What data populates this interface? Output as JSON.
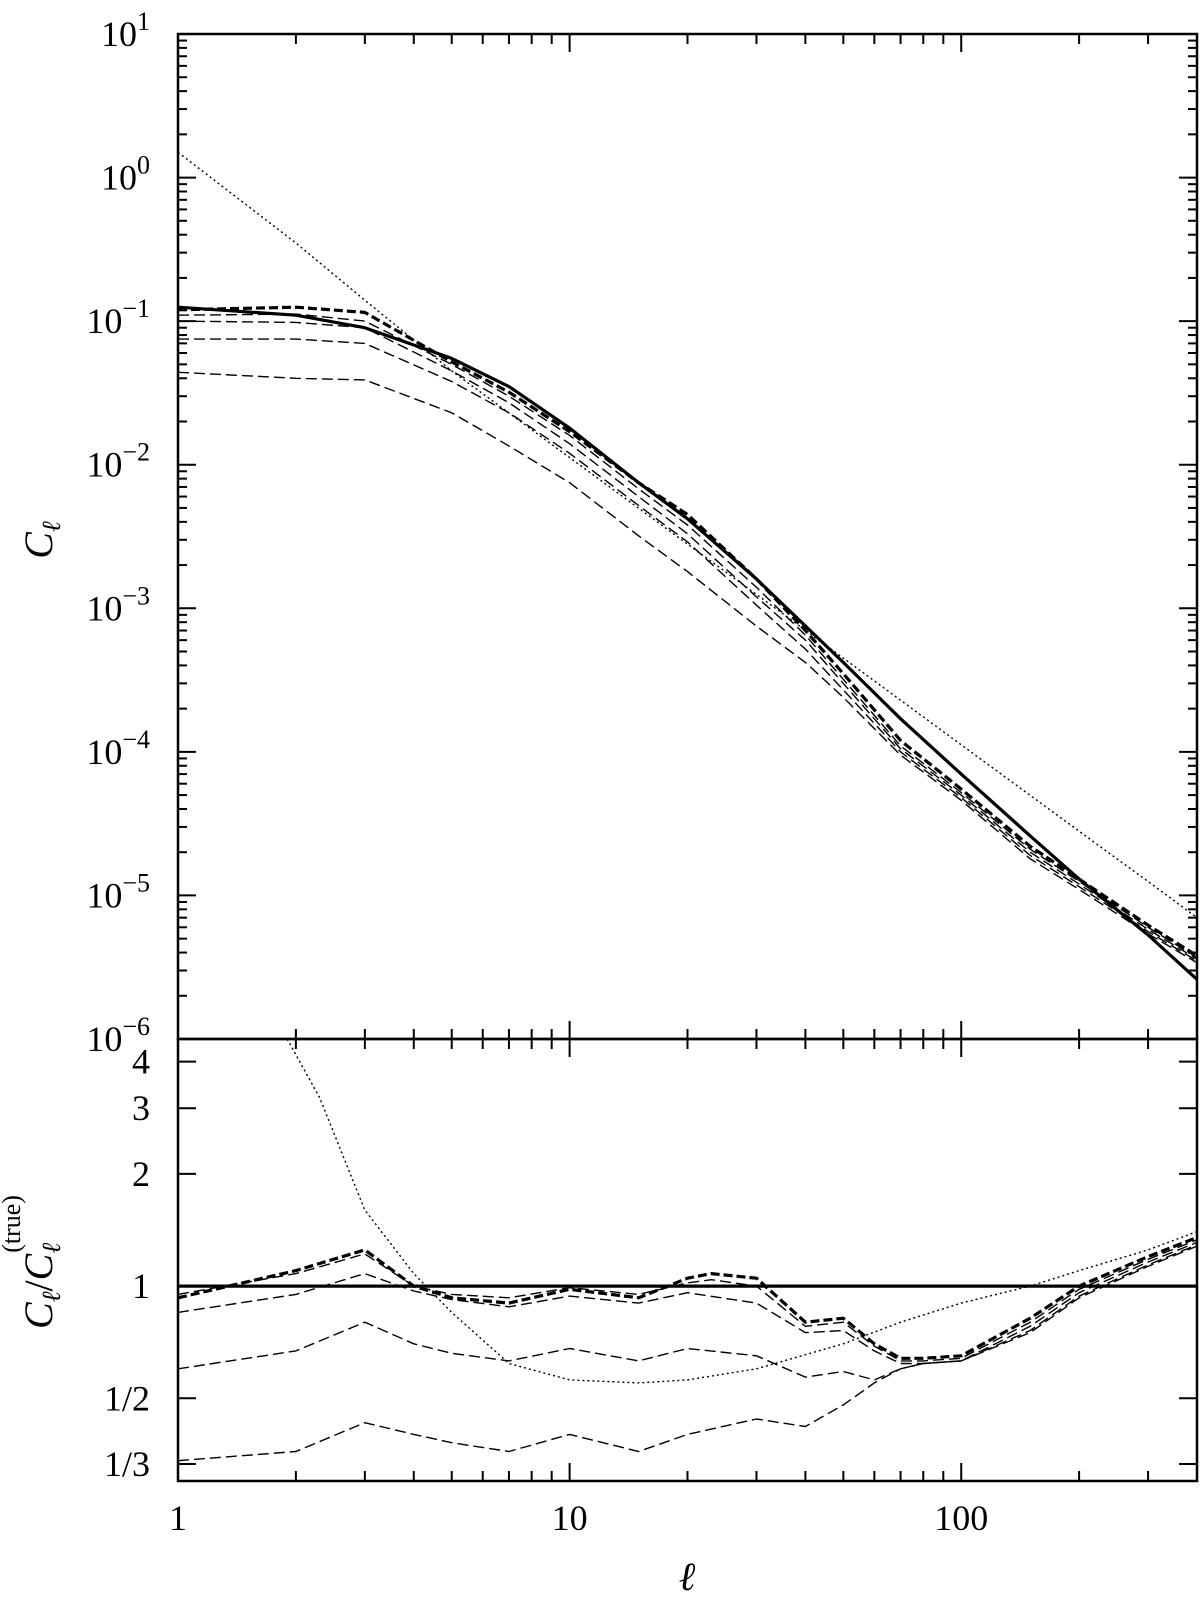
{
  "chart_data": [
    {
      "type": "line",
      "panel": "top",
      "xlabel": "ℓ",
      "ylabel": "C",
      "ylabel_sub": "ℓ",
      "xscale": "log",
      "yscale": "log",
      "xlim": [
        1,
        400
      ],
      "ylim": [
        1e-06,
        10
      ],
      "x_tick_labels": [],
      "y_ticks": [
        {
          "value": 10,
          "base": "10",
          "exp": "1"
        },
        {
          "value": 1,
          "base": "10",
          "exp": "0"
        },
        {
          "value": 0.1,
          "base": "10",
          "exp": "−1"
        },
        {
          "value": 0.01,
          "base": "10",
          "exp": "−2"
        },
        {
          "value": 0.001,
          "base": "10",
          "exp": "−3"
        },
        {
          "value": 0.0001,
          "base": "10",
          "exp": "−4"
        },
        {
          "value": 1e-05,
          "base": "10",
          "exp": "−5"
        },
        {
          "value": 1e-06,
          "base": "10",
          "exp": "−6"
        }
      ],
      "series": [
        {
          "style": "solid",
          "x": [
            1,
            2,
            3,
            5,
            7,
            10,
            15,
            20,
            30,
            50,
            70,
            100,
            150,
            200,
            300,
            400
          ],
          "y": [
            0.125,
            0.11,
            0.09,
            0.055,
            0.035,
            0.018,
            0.0075,
            0.0042,
            0.0016,
            0.00042,
            0.00017,
            7e-05,
            2.6e-05,
            1.3e-05,
            5.3e-06,
            2.6e-06
          ]
        },
        {
          "style": "dotted",
          "x": [
            1,
            2,
            3,
            5,
            10,
            20,
            30,
            50,
            100,
            200,
            300,
            400
          ],
          "y": [
            1.5,
            0.35,
            0.14,
            0.045,
            0.0112,
            0.0028,
            0.00125,
            0.00045,
            0.000112,
            2.8e-05,
            1.25e-05,
            7e-06
          ]
        },
        {
          "style": "dashed-thick",
          "x": [
            1,
            2,
            3,
            5,
            7,
            10,
            15,
            20,
            30,
            40,
            50,
            70,
            100,
            150,
            200,
            300,
            400
          ],
          "y": [
            0.12,
            0.125,
            0.115,
            0.052,
            0.032,
            0.017,
            0.0075,
            0.0045,
            0.0016,
            0.0007,
            0.00035,
            0.00012,
            5.5e-05,
            2.2e-05,
            1.3e-05,
            6.2e-06,
            3.8e-06
          ]
        },
        {
          "style": "dashed",
          "x": [
            1,
            2,
            3,
            5,
            7,
            10,
            15,
            20,
            30,
            40,
            50,
            70,
            100,
            150,
            200,
            300,
            400
          ],
          "y": [
            0.11,
            0.112,
            0.1,
            0.05,
            0.03,
            0.016,
            0.0068,
            0.0038,
            0.0014,
            0.00065,
            0.00032,
            0.00011,
            5.2e-05,
            2.1e-05,
            1.25e-05,
            6e-06,
            3.7e-06
          ]
        },
        {
          "style": "dashed",
          "x": [
            1,
            2,
            3,
            5,
            7,
            10,
            15,
            20,
            30,
            40,
            50,
            70,
            100,
            150,
            200,
            300,
            400
          ],
          "y": [
            0.1,
            0.098,
            0.09,
            0.045,
            0.027,
            0.014,
            0.006,
            0.0033,
            0.0012,
            0.0006,
            0.0003,
            0.000105,
            5e-05,
            2e-05,
            1.2e-05,
            5.8e-06,
            3.6e-06
          ]
        },
        {
          "style": "dashed",
          "x": [
            1,
            2,
            3,
            5,
            7,
            10,
            15,
            20,
            30,
            40,
            50,
            70,
            100,
            150,
            200,
            300,
            400
          ],
          "y": [
            0.075,
            0.075,
            0.07,
            0.038,
            0.023,
            0.012,
            0.0052,
            0.0029,
            0.00105,
            0.00052,
            0.00027,
            0.0001,
            4.8e-05,
            1.9e-05,
            1.15e-05,
            5.6e-06,
            3.5e-06
          ]
        },
        {
          "style": "dashed",
          "x": [
            1,
            2,
            3,
            5,
            7,
            10,
            15,
            20,
            30,
            40,
            50,
            70,
            100,
            150,
            200,
            300,
            400
          ],
          "y": [
            0.044,
            0.04,
            0.039,
            0.023,
            0.0135,
            0.0075,
            0.0032,
            0.0018,
            0.00075,
            0.00042,
            0.00024,
            9.5e-05,
            4.6e-05,
            1.8e-05,
            1.1e-05,
            5.4e-06,
            3.4e-06
          ]
        }
      ]
    },
    {
      "type": "line",
      "panel": "bottom",
      "xlabel": "ℓ",
      "xscale": "log",
      "yscale": "log",
      "xlim": [
        1,
        400
      ],
      "ylim": [
        0.3,
        4.6
      ],
      "x_tick_labels": [
        {
          "value": 1,
          "label": "1"
        },
        {
          "value": 10,
          "label": "10"
        },
        {
          "value": 100,
          "label": "100"
        }
      ],
      "y_ticks": [
        {
          "value": 4,
          "label": "4"
        },
        {
          "value": 3,
          "label": "3"
        },
        {
          "value": 2,
          "label": "2"
        },
        {
          "value": 1,
          "label": "1"
        },
        {
          "value": 0.5,
          "label": "1/2"
        },
        {
          "value": 0.3333,
          "label": "1/3"
        }
      ],
      "series": [
        {
          "style": "solid",
          "x": [
            1,
            400
          ],
          "y": [
            1,
            1
          ]
        },
        {
          "style": "dotted",
          "x": [
            1.9,
            2.3,
            3,
            4,
            5,
            7,
            10,
            15,
            20,
            30,
            50,
            70,
            100,
            150,
            200,
            300,
            400
          ],
          "y": [
            4.6,
            3.2,
            1.6,
            1.08,
            0.85,
            0.62,
            0.56,
            0.55,
            0.56,
            0.6,
            0.7,
            0.8,
            0.9,
            1.0,
            1.1,
            1.25,
            1.4
          ]
        },
        {
          "style": "dashed-thick",
          "x": [
            1,
            2,
            3,
            4,
            5,
            7,
            10,
            15,
            20,
            23,
            30,
            40,
            50,
            60,
            70,
            80,
            100,
            150,
            200,
            300,
            400
          ],
          "y": [
            0.93,
            1.1,
            1.25,
            1.0,
            0.93,
            0.9,
            0.98,
            0.93,
            1.05,
            1.08,
            1.05,
            0.8,
            0.82,
            0.7,
            0.64,
            0.64,
            0.65,
            0.82,
            1.0,
            1.2,
            1.35
          ]
        },
        {
          "style": "dashed",
          "x": [
            1,
            2,
            3,
            4,
            5,
            7,
            10,
            15,
            20,
            23,
            30,
            40,
            50,
            60,
            70,
            80,
            100,
            150,
            200,
            300,
            400
          ],
          "y": [
            0.95,
            1.08,
            1.22,
            1.0,
            0.95,
            0.93,
            0.99,
            0.95,
            1.02,
            1.04,
            1.0,
            0.78,
            0.8,
            0.69,
            0.63,
            0.63,
            0.64,
            0.8,
            0.98,
            1.18,
            1.33
          ]
        },
        {
          "style": "dashed",
          "x": [
            1,
            2,
            3,
            4,
            5,
            7,
            10,
            15,
            20,
            30,
            40,
            50,
            60,
            70,
            80,
            100,
            150,
            200,
            300,
            400
          ],
          "y": [
            0.85,
            0.95,
            1.08,
            0.97,
            0.92,
            0.88,
            0.94,
            0.9,
            0.96,
            0.9,
            0.75,
            0.76,
            0.67,
            0.62,
            0.62,
            0.63,
            0.78,
            0.96,
            1.16,
            1.31
          ]
        },
        {
          "style": "dashed",
          "x": [
            1,
            2,
            3,
            4,
            5,
            7,
            10,
            15,
            20,
            30,
            40,
            50,
            60,
            70,
            80,
            100,
            150,
            200,
            300,
            400
          ],
          "y": [
            0.6,
            0.67,
            0.8,
            0.7,
            0.66,
            0.63,
            0.68,
            0.63,
            0.68,
            0.65,
            0.57,
            0.59,
            0.56,
            0.6,
            0.62,
            0.63,
            0.76,
            0.94,
            1.14,
            1.29
          ]
        },
        {
          "style": "dashed",
          "x": [
            1,
            2,
            3,
            4,
            5,
            7,
            10,
            15,
            20,
            30,
            40,
            50,
            60,
            70,
            80,
            100,
            150,
            200,
            300,
            400
          ],
          "y": [
            0.34,
            0.36,
            0.43,
            0.4,
            0.38,
            0.36,
            0.4,
            0.36,
            0.4,
            0.44,
            0.42,
            0.48,
            0.55,
            0.6,
            0.62,
            0.63,
            0.75,
            0.93,
            1.13,
            1.28
          ]
        }
      ]
    }
  ],
  "bottom_ylabel": {
    "main": "C",
    "sub": "ℓ",
    "sep": "/",
    "main2": "C",
    "sub2": "ℓ",
    "sup2": "(true)"
  }
}
